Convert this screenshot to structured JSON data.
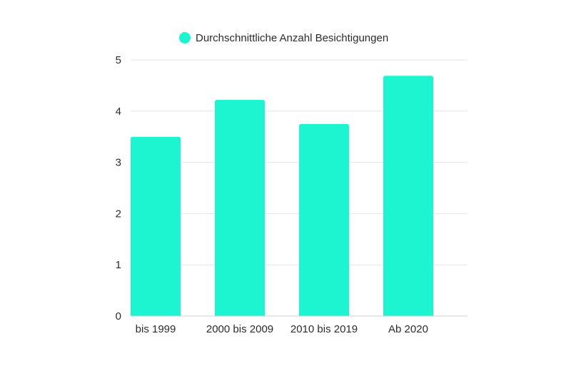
{
  "chart_data": {
    "type": "bar",
    "categories": [
      "bis 1999",
      "2000 bis 2009",
      "2010 bis 2019",
      "Ab 2020"
    ],
    "series": [
      {
        "name": "Durchschnittliche Anzahl Besichtigungen",
        "values": [
          3.5,
          4.22,
          3.75,
          4.69
        ]
      }
    ],
    "yticks": [
      "0",
      "1",
      "2",
      "3",
      "4",
      "5"
    ],
    "ylim": [
      0,
      5
    ],
    "grid": true,
    "legend_position": "top",
    "colors": {
      "bar": "#1cf5cf",
      "grid": "#e6e6e6",
      "axis": "#cfcfcf",
      "text": "#2b2b2b"
    }
  }
}
